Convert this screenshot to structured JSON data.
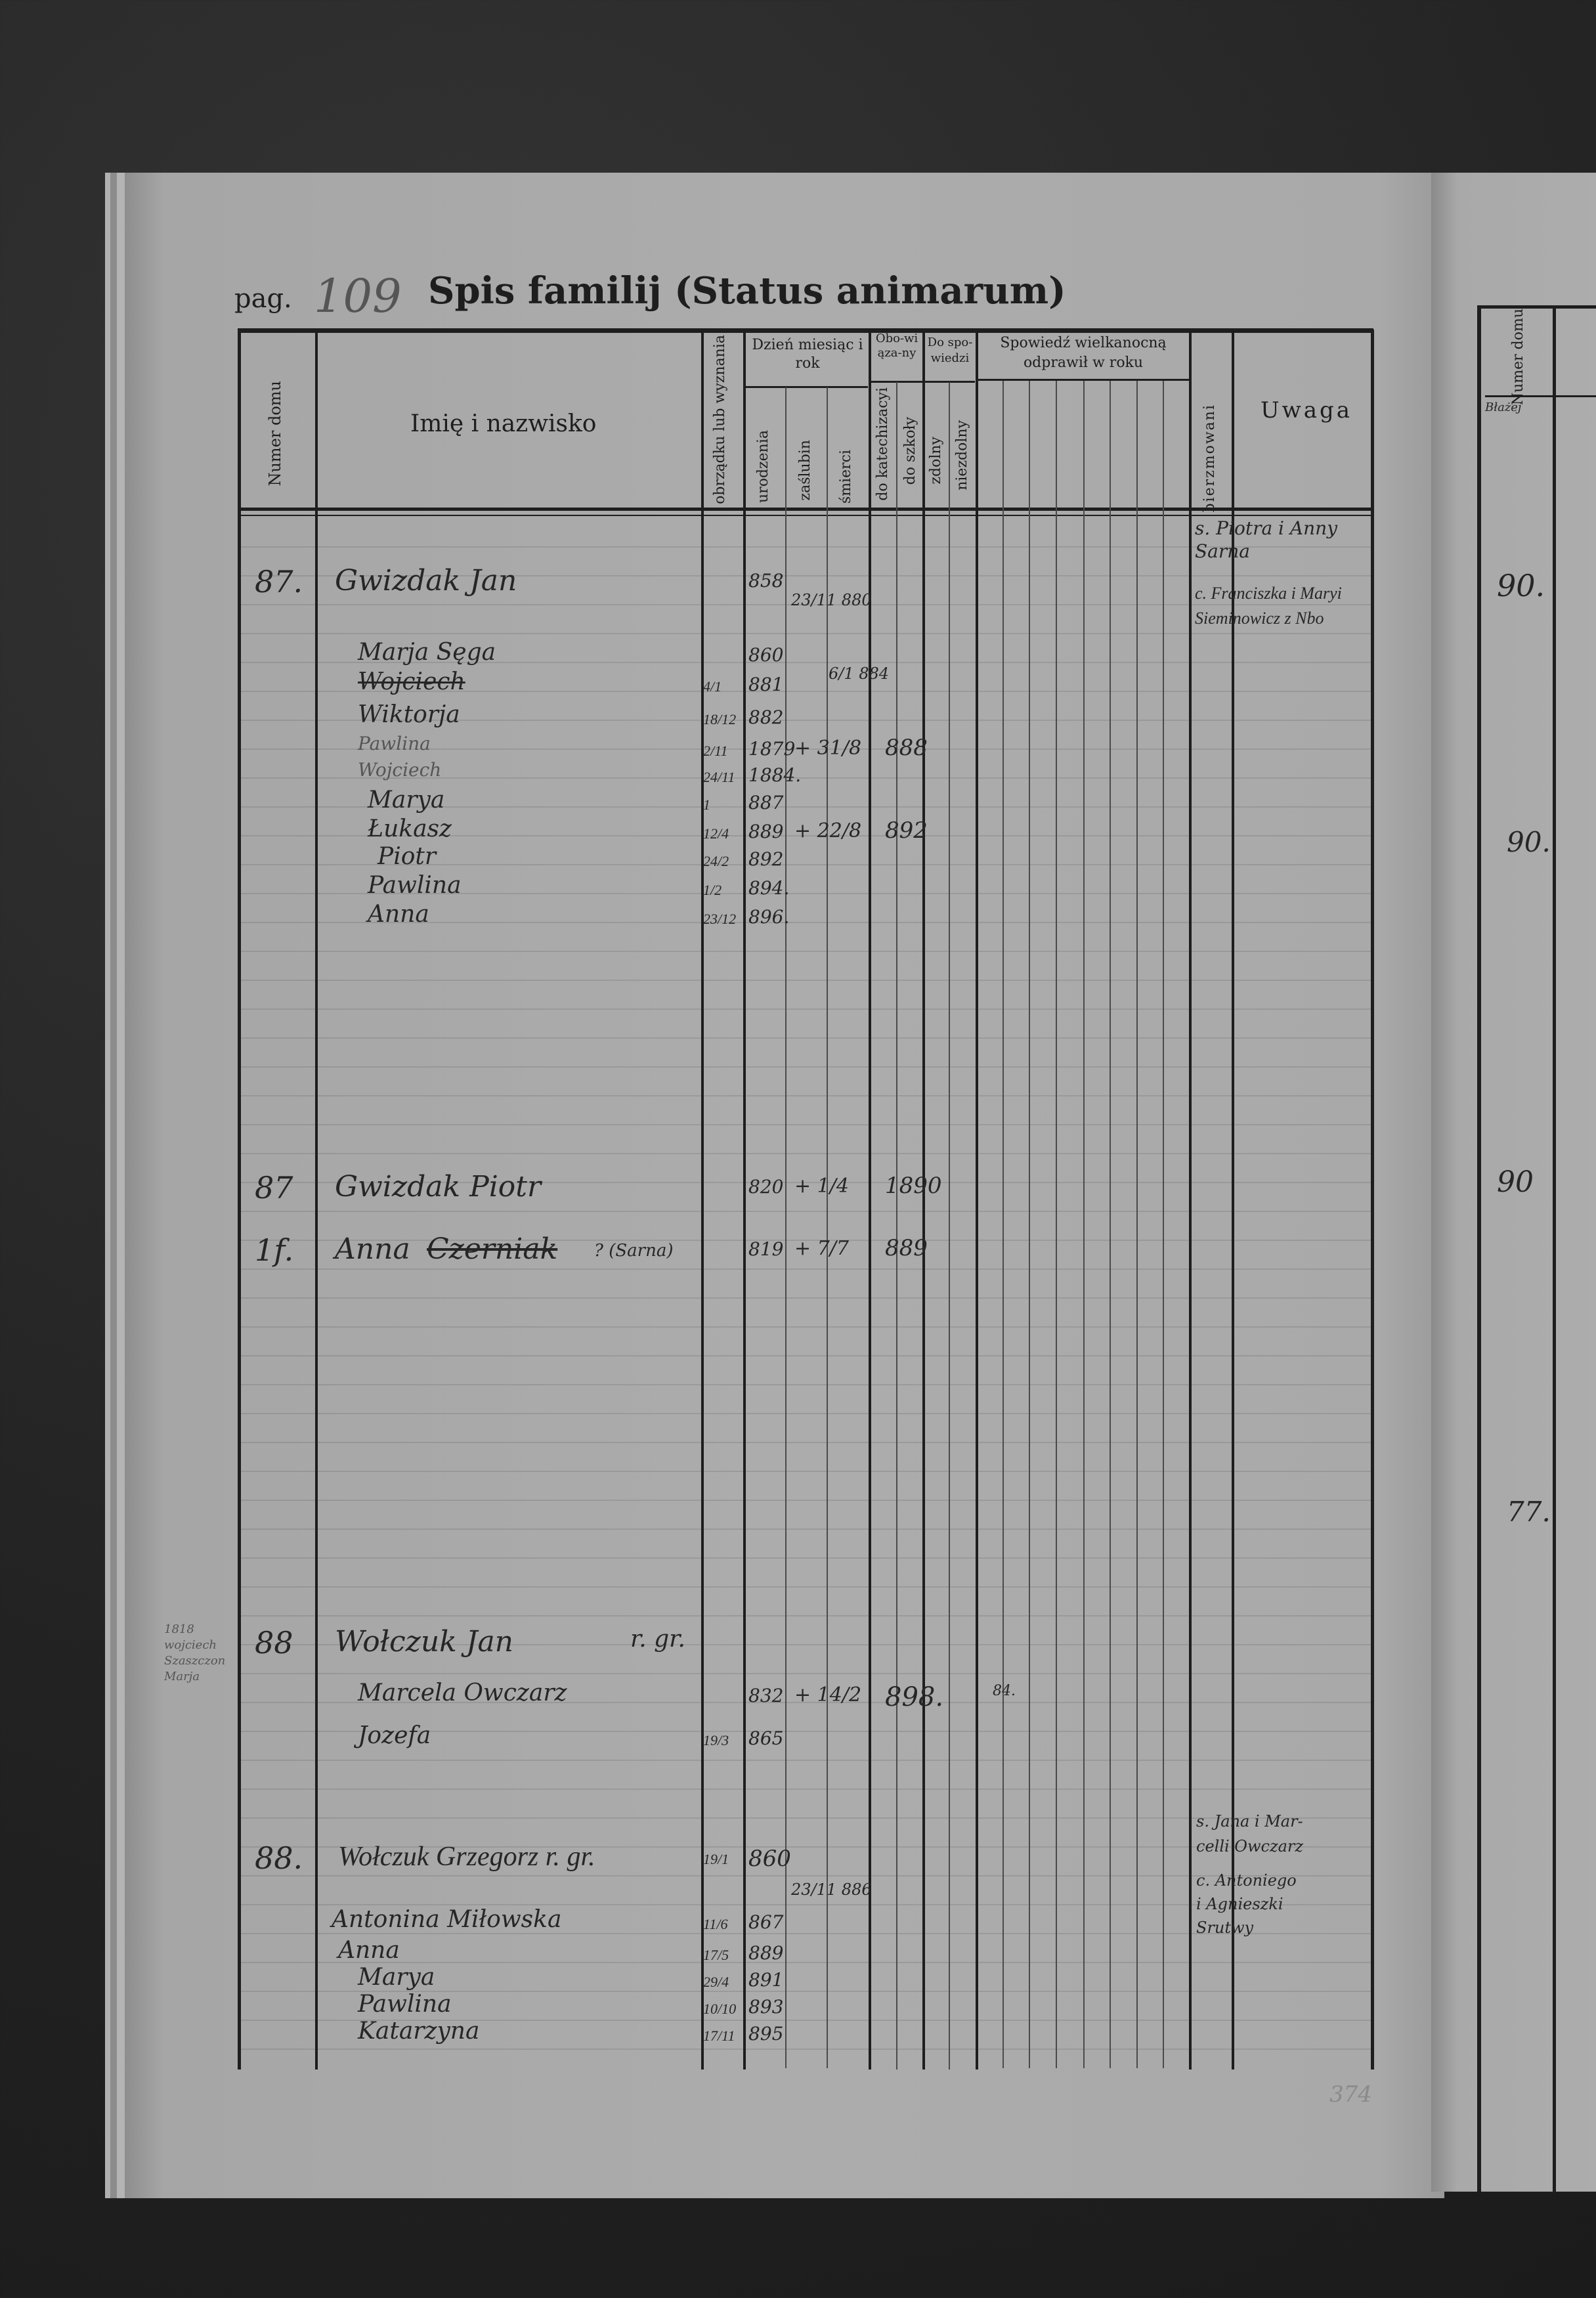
{
  "page": {
    "label": "pag.",
    "number": "109",
    "title": "Spis familij (Status animarum)",
    "stamp_number": "374"
  },
  "columns": {
    "numer_domu": "Numer domu",
    "name": "Imię i nazwisko",
    "rite": "obrządku lub wyznania",
    "dzien": "Dzień miesiąc i rok",
    "urodzenia": "urodzenia",
    "zaslubin": "zaślubin",
    "smierci": "śmierci",
    "obowiazany": "Obo-wiąza-ny",
    "katechizacyi": "do katechizacyi",
    "szkoly": "do szkoły",
    "do_spowiedzi": "Do spo-wiedzi",
    "zdolny": "zdolny",
    "niezdolny": "niezdolny",
    "spowiedz": "Spowiedź wielkanocną odprawił w roku",
    "bierzmowani": "bierzmowani",
    "uwaga": "Uwaga"
  },
  "families": [
    {
      "rows": [
        {
          "house": "87.",
          "name": "Gwizdak Jan",
          "birth": "858",
          "marriage": "23/11 880"
        },
        {
          "name": "Marja Sęga",
          "birth": "860"
        },
        {
          "name": "Wojciech",
          "rite": "4/1",
          "birth": "881",
          "death": "6/1 884"
        },
        {
          "name": "Wiktorja",
          "rite": "18/12",
          "birth": "882"
        },
        {
          "name": "Pawlina",
          "rite": "2/11",
          "birth": "1879",
          "death": "+ 31/8",
          "death_year": "888"
        },
        {
          "name": "Wojciech",
          "rite": "24/11",
          "birth": "1884."
        },
        {
          "name": "Marya",
          "rite": "1",
          "birth": "887"
        },
        {
          "name": "Łukasz",
          "rite": "12/4",
          "birth": "889",
          "death": "+ 22/8",
          "death_year": "892"
        },
        {
          "name": "Piotr",
          "rite": "24/2",
          "birth": "892"
        },
        {
          "name": "Pawlina",
          "rite": "1/2",
          "birth": "894."
        },
        {
          "name": "Anna",
          "rite": "23/12",
          "birth": "896."
        }
      ],
      "remarks": [
        "s. Piotra i Anny",
        "Sarna",
        "c. Franciszka i Maryi",
        "Sieminowicz z Nbo"
      ]
    },
    {
      "rows": [
        {
          "house": "87",
          "name": "Gwizdak Piotr",
          "birth": "820",
          "death": "+ 1/4",
          "death_year": "1890"
        },
        {
          "house": "1f.",
          "name": "Anna",
          "struck": "Czerniak",
          "note": "? (Sarna)",
          "birth": "819",
          "death": "+ 7/7",
          "death_year": "889"
        }
      ]
    },
    {
      "margin_note": [
        "1818",
        "wojciech",
        "Szaszczon",
        "Marja"
      ],
      "rows": [
        {
          "house": "88",
          "name": "Wołczuk Jan",
          "note": "r. gr."
        },
        {
          "name": "Marcela Owczarz",
          "birth": "832",
          "death": "+ 14/2",
          "death_year": "898.",
          "spowiedz": "84."
        },
        {
          "name": "Jozefa",
          "rite": "19/3",
          "birth": "865"
        }
      ]
    },
    {
      "rows": [
        {
          "house": "88.",
          "name": "Wołczuk Grzegorz r. gr.",
          "rite": "19/1",
          "birth": "860",
          "marriage": "23/11 886"
        },
        {
          "name": "Antonina Miłowska",
          "rite": "11/6",
          "birth": "867"
        },
        {
          "name": "Anna",
          "rite": "17/5",
          "birth": "889"
        },
        {
          "name": "Marya",
          "rite": "29/4",
          "birth": "891"
        },
        {
          "name": "Pawlina",
          "rite": "10/10",
          "birth": "893"
        },
        {
          "name": "Katarzyna",
          "rite": "17/11",
          "birth": "895"
        }
      ],
      "remarks": [
        "s. Jana i Mar-",
        "celli Owczarz",
        "c. Antoniego",
        "i Agnieszki",
        "Srutwy"
      ]
    }
  ],
  "right_page": {
    "column": "Numer domu",
    "annotation": "Błażej",
    "house_numbers": [
      "90.",
      "90.",
      "90",
      "77."
    ]
  }
}
